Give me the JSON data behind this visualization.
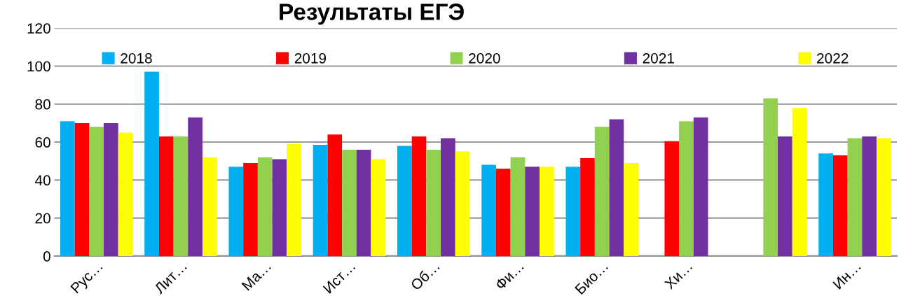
{
  "chart_data": {
    "type": "bar",
    "title": "Результаты ЕГЭ",
    "categories": [
      "Рус…",
      "Лит…",
      "Ма…",
      "Ист…",
      "Об…",
      "Фи…",
      "Био…",
      "Хи…",
      null,
      "Ин…"
    ],
    "series": [
      {
        "name": "2018",
        "color": "#00b0f0",
        "values": [
          71,
          97,
          47,
          58.5,
          58,
          48,
          47,
          null,
          null,
          54
        ]
      },
      {
        "name": "2019",
        "color": "#ff0000",
        "values": [
          70,
          63,
          49,
          64,
          63,
          46,
          51.5,
          60.5,
          null,
          53
        ]
      },
      {
        "name": "2020",
        "color": "#92d050",
        "values": [
          68,
          63,
          52,
          56,
          56,
          52,
          68,
          71,
          83,
          62
        ]
      },
      {
        "name": "2021",
        "color": "#7030a0",
        "values": [
          70,
          73,
          51,
          56,
          62,
          47,
          72,
          73,
          63,
          63
        ]
      },
      {
        "name": "2022",
        "color": "#ffff00",
        "values": [
          65,
          52,
          59,
          51,
          55,
          47,
          49,
          null,
          78,
          62
        ]
      }
    ],
    "ylim": [
      0,
      120
    ],
    "yticks": [
      0,
      20,
      40,
      60,
      80,
      100,
      120
    ],
    "grid": "y",
    "legend": "top"
  }
}
